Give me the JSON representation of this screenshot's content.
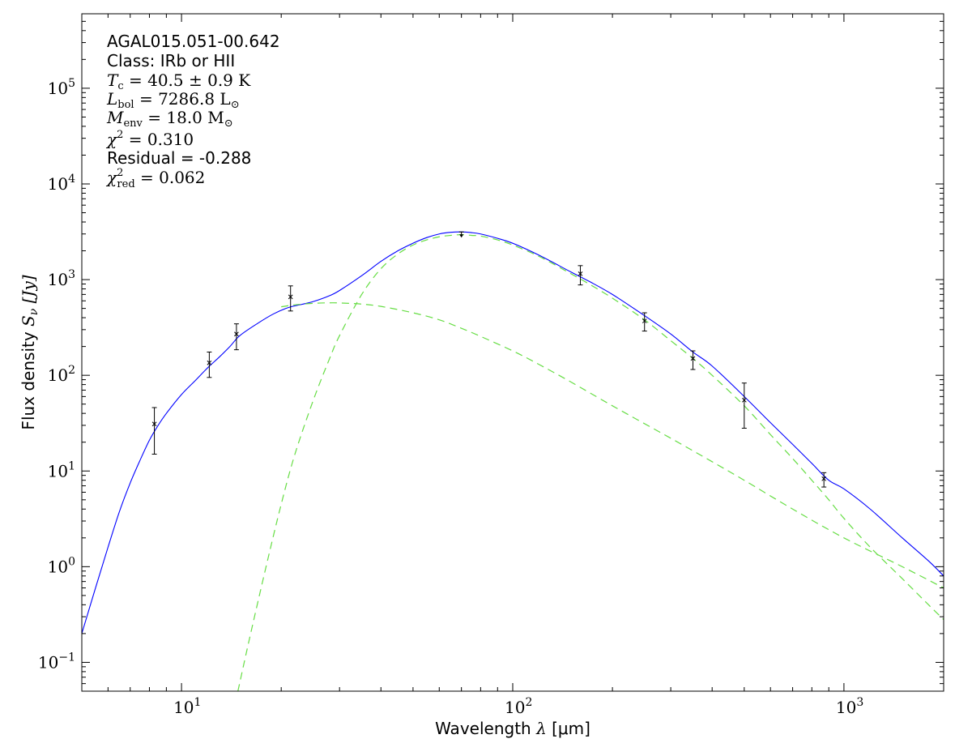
{
  "chart_data": {
    "type": "line",
    "xscale": "log",
    "yscale": "log",
    "xlim": [
      5,
      2000
    ],
    "ylim": [
      0.05,
      600000
    ],
    "xlabel_text": "Wavelength",
    "xlabel_symbol": "λ",
    "xlabel_unit": "[μm]",
    "ylabel_text": "Flux density",
    "ylabel_symbol": "S",
    "ylabel_sub": "ν",
    "ylabel_unit": "[Jy]",
    "x_major_ticks": [
      {
        "value": 10,
        "base": "10",
        "exp": "1"
      },
      {
        "value": 100,
        "base": "10",
        "exp": "2"
      },
      {
        "value": 1000,
        "base": "10",
        "exp": "3"
      }
    ],
    "y_major_ticks": [
      {
        "value": 0.1,
        "base": "10",
        "exp": "−1"
      },
      {
        "value": 1,
        "base": "10",
        "exp": "0"
      },
      {
        "value": 10,
        "base": "10",
        "exp": "1"
      },
      {
        "value": 100,
        "base": "10",
        "exp": "2"
      },
      {
        "value": 1000,
        "base": "10",
        "exp": "3"
      },
      {
        "value": 10000,
        "base": "10",
        "exp": "4"
      },
      {
        "value": 100000,
        "base": "10",
        "exp": "5"
      }
    ],
    "annotations": {
      "source": "AGAL015.051-00.642",
      "class_line": "Class: IRb or HII",
      "tc": {
        "sym": "T",
        "sub": "c",
        "rest": " = 40.5 ± 0.9 K"
      },
      "lbol": {
        "sym": "L",
        "sub": "bol",
        "rest": " = 7286.8 L",
        "unit_sub": "⊙"
      },
      "menv": {
        "sym": "M",
        "sub": "env",
        "rest": " = 18.0 M",
        "unit_sub": "⊙"
      },
      "chi2": {
        "sym": "χ",
        "sup": "2",
        "rest": " = 0.310"
      },
      "residual": "Residual = -0.288",
      "chi2red": {
        "sym": "χ",
        "sup": "2",
        "sub": "red",
        "rest": " = 0.062"
      }
    },
    "series": [
      {
        "type": "line",
        "color": "#0000ff",
        "dash": "solid",
        "x": [
          5,
          5.5,
          6,
          6.5,
          7,
          7.5,
          8,
          8.5,
          9,
          10,
          11,
          12,
          13,
          14,
          15,
          17,
          19,
          21,
          23,
          25,
          28,
          30,
          35,
          40,
          45,
          50,
          55,
          60,
          65,
          70,
          75,
          80,
          90,
          100,
          120,
          150,
          170,
          200,
          250,
          300,
          350,
          400,
          500,
          600,
          700,
          800,
          900,
          1000,
          1200,
          1500,
          1800,
          2000
        ],
        "y": [
          0.2,
          0.6,
          1.6,
          3.8,
          7.5,
          13,
          21,
          30,
          40,
          63,
          88,
          120,
          155,
          200,
          260,
          350,
          440,
          510,
          550,
          590,
          680,
          770,
          1100,
          1550,
          2000,
          2400,
          2750,
          3000,
          3120,
          3150,
          3100,
          3000,
          2700,
          2400,
          1800,
          1200,
          960,
          700,
          420,
          270,
          175,
          125,
          60,
          32,
          19,
          12,
          8,
          6.5,
          4,
          2,
          1.15,
          0.8
        ]
      },
      {
        "type": "line",
        "color": "#66dd44",
        "dash": "dashed",
        "x": [
          14.8,
          16,
          18,
          20,
          22,
          25,
          28,
          30,
          35,
          40,
          45,
          50,
          55,
          60,
          65,
          70,
          75,
          80,
          90,
          100,
          120,
          150,
          170,
          200,
          250,
          300,
          350,
          400,
          500,
          600,
          700,
          800,
          900,
          1000,
          1200,
          1500,
          1800,
          2000
        ],
        "y": [
          0.05,
          0.17,
          1.0,
          4.5,
          15,
          55,
          150,
          260,
          700,
          1300,
          1850,
          2300,
          2600,
          2800,
          2900,
          2950,
          2900,
          2850,
          2600,
          2300,
          1750,
          1150,
          900,
          640,
          380,
          230,
          150,
          100,
          48,
          24,
          13.5,
          8,
          5,
          3.2,
          1.6,
          0.75,
          0.4,
          0.28
        ]
      },
      {
        "type": "line",
        "color": "#66dd44",
        "dash": "dashed",
        "x": [
          20,
          22,
          25,
          28,
          30,
          35,
          40,
          50,
          60,
          70,
          80,
          100,
          120,
          150,
          200,
          300,
          400,
          500,
          700,
          1000,
          1500,
          2000
        ],
        "y": [
          520,
          545,
          565,
          572,
          570,
          555,
          525,
          450,
          380,
          310,
          255,
          180,
          130,
          85,
          48,
          22,
          12.5,
          8,
          4,
          2,
          1,
          0.6
        ]
      }
    ],
    "points": [
      {
        "x": 8.28,
        "y": 31,
        "ylo": 15,
        "yhi": 46
      },
      {
        "x": 12.13,
        "y": 135,
        "ylo": 95,
        "yhi": 175
      },
      {
        "x": 14.65,
        "y": 270,
        "ylo": 185,
        "yhi": 345
      },
      {
        "x": 21.34,
        "y": 660,
        "ylo": 470,
        "yhi": 860
      },
      {
        "x": 160,
        "y": 1150,
        "ylo": 880,
        "yhi": 1400
      },
      {
        "x": 250,
        "y": 370,
        "ylo": 290,
        "yhi": 450
      },
      {
        "x": 350,
        "y": 150,
        "ylo": 115,
        "yhi": 180
      },
      {
        "x": 500,
        "y": 55,
        "ylo": 28,
        "yhi": 83
      },
      {
        "x": 870,
        "y": 8.3,
        "ylo": 6.8,
        "yhi": 9.6
      }
    ],
    "upper_limits": [
      {
        "x": 70,
        "y": 2800,
        "ytop": 3150
      }
    ]
  }
}
